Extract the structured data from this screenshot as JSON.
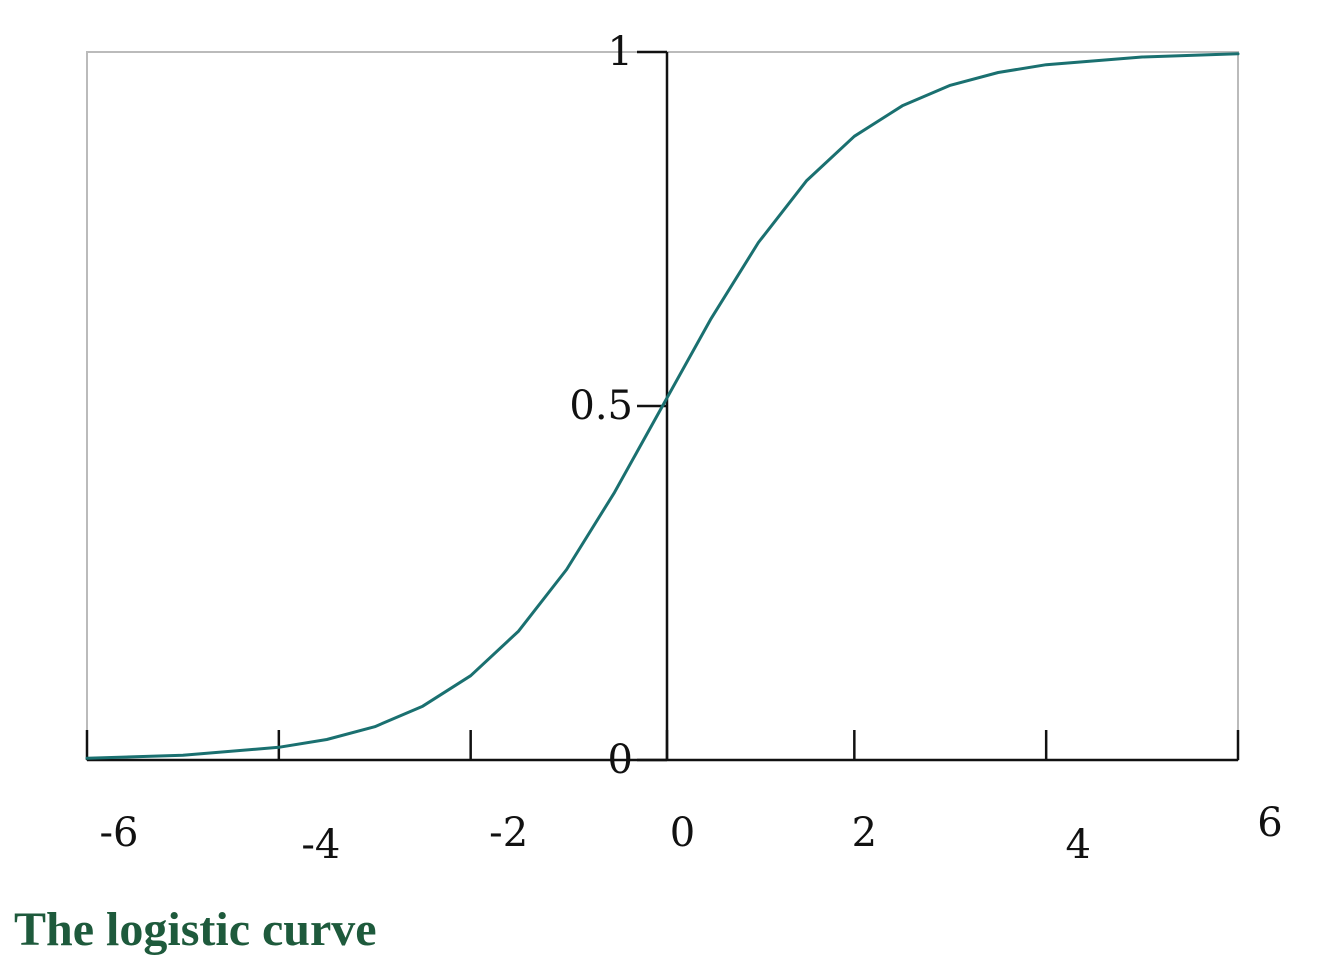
{
  "chart_data": {
    "type": "line",
    "title": "The logistic curve",
    "xlabel": "",
    "ylabel": "",
    "xlim": [
      -6,
      6
    ],
    "ylim": [
      0,
      1
    ],
    "grid": false,
    "legend": "none",
    "x_ticks": [
      {
        "value": -6,
        "label": "-6"
      },
      {
        "value": -4,
        "label": "-4"
      },
      {
        "value": -2,
        "label": "-2"
      },
      {
        "value": 0,
        "label": "0"
      },
      {
        "value": 2,
        "label": "2"
      },
      {
        "value": 4,
        "label": "4"
      },
      {
        "value": 6,
        "label": "6"
      }
    ],
    "y_ticks": [
      {
        "value": 0,
        "label": "0"
      },
      {
        "value": 0.5,
        "label": "0.5"
      },
      {
        "value": 1,
        "label": "1"
      }
    ],
    "series": [
      {
        "x": [
          -6,
          -5,
          -4,
          -3.5,
          -3,
          -2.5,
          -2,
          -1.5,
          -1,
          -0.5,
          0,
          0.5,
          1,
          1.5,
          2,
          2.5,
          3,
          3.5,
          4,
          5,
          6
        ],
        "y": [
          0.0025,
          0.0067,
          0.018,
          0.029,
          0.047,
          0.076,
          0.119,
          0.182,
          0.269,
          0.378,
          0.5,
          0.622,
          0.731,
          0.818,
          0.881,
          0.924,
          0.953,
          0.971,
          0.982,
          0.993,
          0.9975
        ]
      }
    ],
    "colors": {
      "curve": "#1a7070",
      "caption": "#1e5a3c",
      "frame": "#bbbbbb",
      "axis": "#111111"
    }
  }
}
